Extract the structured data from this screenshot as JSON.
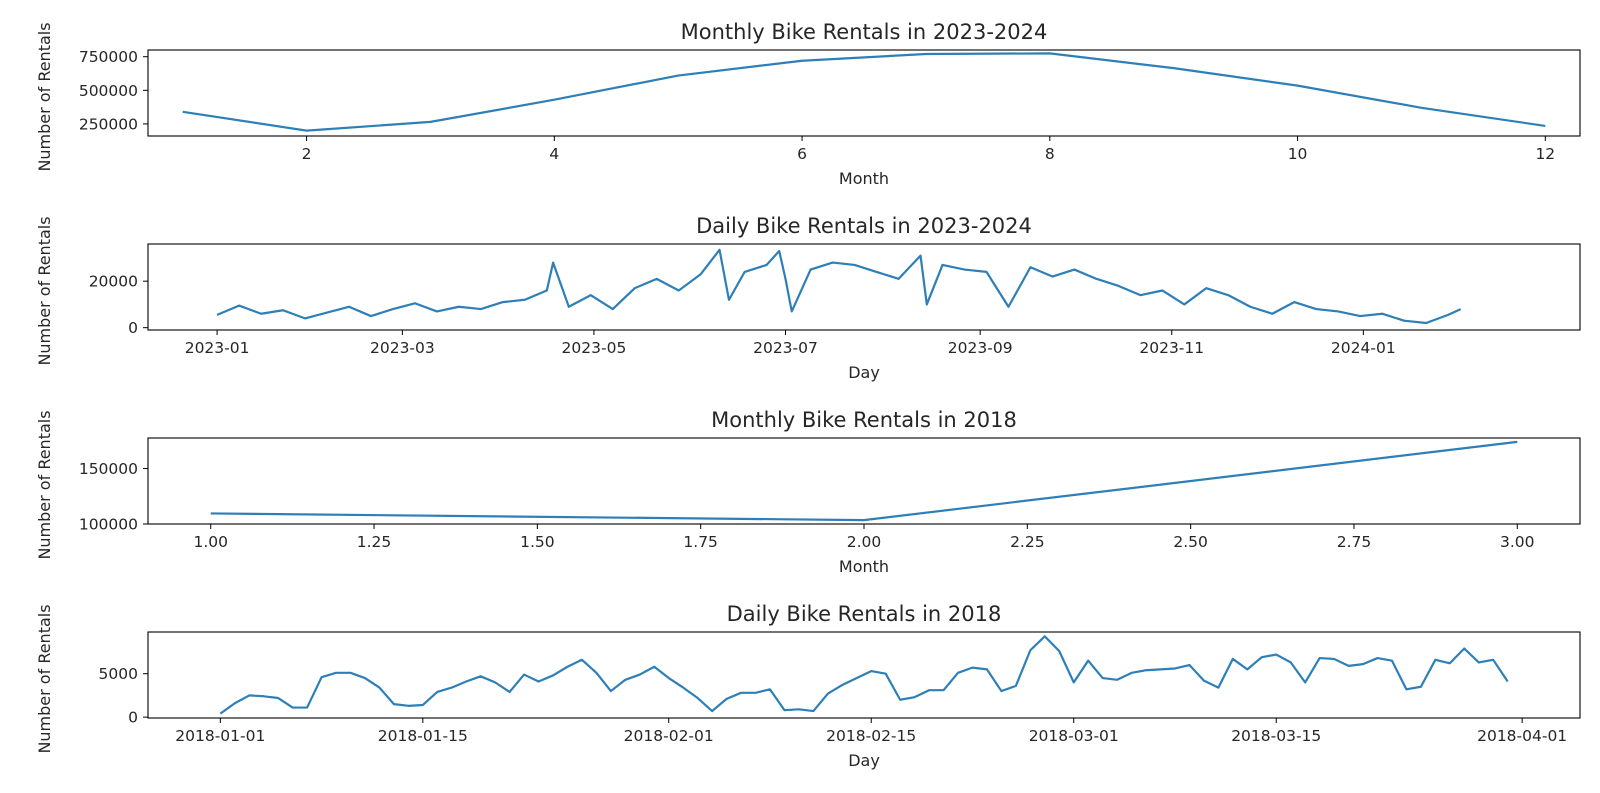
{
  "chart_data": [
    {
      "type": "line",
      "title": "Monthly Bike Rentals in 2023-2024",
      "xlabel": "Month",
      "ylabel": "Number of Rentals",
      "xlim": [
        0.72,
        12.28
      ],
      "ylim": [
        160000,
        800000
      ],
      "xticks": [
        2,
        4,
        6,
        8,
        10,
        12
      ],
      "xtick_labels": [
        "2",
        "4",
        "6",
        "8",
        "10",
        "12"
      ],
      "yticks": [
        250000,
        500000,
        750000
      ],
      "ytick_labels": [
        "250000",
        "500000",
        "750000"
      ],
      "grid": false,
      "color": "#2e7fb8",
      "x": [
        1,
        2,
        3,
        4,
        5,
        6,
        7,
        8,
        9,
        10,
        11,
        12
      ],
      "y": [
        340000,
        200000,
        265000,
        430000,
        610000,
        720000,
        770000,
        775000,
        665000,
        535000,
        370000,
        235000
      ]
    },
    {
      "type": "line",
      "title": "Daily Bike Rentals in 2023-2024",
      "xlabel": "Day",
      "ylabel": "Number of Rentals",
      "x_is_date": true,
      "xlim": [
        "2022-12-10",
        "2024-03-10"
      ],
      "ylim": [
        -1000,
        36000
      ],
      "xticks": [
        "2023-01-01",
        "2023-03-01",
        "2023-05-01",
        "2023-07-01",
        "2023-09-01",
        "2023-11-01",
        "2024-01-01"
      ],
      "xtick_labels": [
        "2023-01",
        "2023-03",
        "2023-05",
        "2023-07",
        "2023-09",
        "2023-11",
        "2024-01"
      ],
      "yticks": [
        0,
        20000
      ],
      "ytick_labels": [
        "0",
        "20000"
      ],
      "grid": false,
      "color": "#2e7fb8",
      "x": [
        "2023-01-01",
        "2023-01-08",
        "2023-01-15",
        "2023-01-22",
        "2023-01-29",
        "2023-02-05",
        "2023-02-12",
        "2023-02-19",
        "2023-02-26",
        "2023-03-05",
        "2023-03-12",
        "2023-03-19",
        "2023-03-26",
        "2023-04-02",
        "2023-04-09",
        "2023-04-16",
        "2023-04-18",
        "2023-04-23",
        "2023-04-30",
        "2023-05-07",
        "2023-05-14",
        "2023-05-21",
        "2023-05-28",
        "2023-06-04",
        "2023-06-10",
        "2023-06-13",
        "2023-06-18",
        "2023-06-25",
        "2023-06-29",
        "2023-07-01",
        "2023-07-03",
        "2023-07-09",
        "2023-07-16",
        "2023-07-23",
        "2023-07-30",
        "2023-08-06",
        "2023-08-13",
        "2023-08-15",
        "2023-08-20",
        "2023-08-27",
        "2023-09-03",
        "2023-09-10",
        "2023-09-17",
        "2023-09-24",
        "2023-10-01",
        "2023-10-08",
        "2023-10-15",
        "2023-10-22",
        "2023-10-29",
        "2023-11-05",
        "2023-11-12",
        "2023-11-19",
        "2023-11-26",
        "2023-12-03",
        "2023-12-10",
        "2023-12-17",
        "2023-12-24",
        "2023-12-31",
        "2024-01-07",
        "2024-01-14",
        "2024-01-21",
        "2024-01-28",
        "2024-02-01"
      ],
      "y": [
        5500,
        9500,
        6000,
        7500,
        4000,
        6500,
        9000,
        5000,
        8000,
        10500,
        7000,
        9000,
        8000,
        11000,
        12000,
        16000,
        28000,
        9000,
        14000,
        8000,
        17000,
        21000,
        16000,
        23000,
        33500,
        12000,
        24000,
        27000,
        33000,
        21000,
        7000,
        25000,
        28000,
        27000,
        24000,
        21000,
        31000,
        10000,
        27000,
        25000,
        24000,
        9000,
        26000,
        22000,
        25000,
        21000,
        18000,
        14000,
        16000,
        10000,
        17000,
        14000,
        9000,
        6000,
        11000,
        8000,
        7000,
        5000,
        6000,
        3000,
        2000,
        5500,
        8000
      ]
    },
    {
      "type": "line",
      "title": "Monthly Bike Rentals in 2018",
      "xlabel": "Month",
      "ylabel": "Number of Rentals",
      "xlim": [
        0.904,
        3.096
      ],
      "ylim": [
        100000,
        177500
      ],
      "xticks": [
        1.0,
        1.25,
        1.5,
        1.75,
        2.0,
        2.25,
        2.5,
        2.75,
        3.0
      ],
      "xtick_labels": [
        "1.00",
        "1.25",
        "1.50",
        "1.75",
        "2.00",
        "2.25",
        "2.50",
        "2.75",
        "3.00"
      ],
      "yticks": [
        100000,
        150000
      ],
      "ytick_labels": [
        "100000",
        "150000"
      ],
      "grid": false,
      "color": "#2e7fb8",
      "x": [
        1,
        2,
        3
      ],
      "y": [
        109500,
        103500,
        174000
      ]
    },
    {
      "type": "line",
      "title": "Daily Bike Rentals in 2018",
      "xlabel": "Day",
      "ylabel": "Number of Rentals",
      "x_is_date": true,
      "xlim": [
        "2017-12-27",
        "2018-04-05"
      ],
      "ylim": [
        -100,
        9800
      ],
      "xticks": [
        "2018-01-01",
        "2018-01-15",
        "2018-02-01",
        "2018-02-15",
        "2018-03-01",
        "2018-03-15",
        "2018-04-01"
      ],
      "xtick_labels": [
        "2018-01-01",
        "2018-01-15",
        "2018-02-01",
        "2018-02-15",
        "2018-03-01",
        "2018-03-15",
        "2018-04-01"
      ],
      "yticks": [
        0,
        5000
      ],
      "ytick_labels": [
        "0",
        "5000"
      ],
      "grid": false,
      "color": "#2e7fb8",
      "x": [
        "2018-01-01",
        "2018-01-02",
        "2018-01-03",
        "2018-01-04",
        "2018-01-05",
        "2018-01-06",
        "2018-01-07",
        "2018-01-08",
        "2018-01-09",
        "2018-01-10",
        "2018-01-11",
        "2018-01-12",
        "2018-01-13",
        "2018-01-14",
        "2018-01-15",
        "2018-01-16",
        "2018-01-17",
        "2018-01-18",
        "2018-01-19",
        "2018-01-20",
        "2018-01-21",
        "2018-01-22",
        "2018-01-23",
        "2018-01-24",
        "2018-01-25",
        "2018-01-26",
        "2018-01-27",
        "2018-01-28",
        "2018-01-29",
        "2018-01-30",
        "2018-01-31",
        "2018-02-01",
        "2018-02-02",
        "2018-02-03",
        "2018-02-04",
        "2018-02-05",
        "2018-02-06",
        "2018-02-07",
        "2018-02-08",
        "2018-02-09",
        "2018-02-10",
        "2018-02-11",
        "2018-02-12",
        "2018-02-13",
        "2018-02-14",
        "2018-02-15",
        "2018-02-16",
        "2018-02-17",
        "2018-02-18",
        "2018-02-19",
        "2018-02-20",
        "2018-02-21",
        "2018-02-22",
        "2018-02-23",
        "2018-02-24",
        "2018-02-25",
        "2018-02-26",
        "2018-02-27",
        "2018-02-28",
        "2018-03-01",
        "2018-03-02",
        "2018-03-03",
        "2018-03-04",
        "2018-03-05",
        "2018-03-06",
        "2018-03-07",
        "2018-03-08",
        "2018-03-09",
        "2018-03-10",
        "2018-03-11",
        "2018-03-12",
        "2018-03-13",
        "2018-03-14",
        "2018-03-15",
        "2018-03-16",
        "2018-03-17",
        "2018-03-18",
        "2018-03-19",
        "2018-03-20",
        "2018-03-21",
        "2018-03-22",
        "2018-03-23",
        "2018-03-24",
        "2018-03-25",
        "2018-03-26",
        "2018-03-27",
        "2018-03-28",
        "2018-03-29",
        "2018-03-30",
        "2018-03-31"
      ],
      "y": [
        400,
        1600,
        2500,
        2400,
        2200,
        1100,
        1100,
        4600,
        5100,
        5100,
        4500,
        3400,
        1500,
        1300,
        1400,
        2900,
        3400,
        4100,
        4700,
        4000,
        2900,
        4900,
        4100,
        4800,
        5800,
        6600,
        5100,
        3000,
        4300,
        4900,
        5800,
        4500,
        3400,
        2200,
        700,
        2100,
        2800,
        2800,
        3200,
        800,
        900,
        700,
        2700,
        3700,
        4500,
        5300,
        5000,
        2000,
        2300,
        3100,
        3100,
        5100,
        5700,
        5500,
        3000,
        3600,
        7700,
        9300,
        7600,
        4000,
        6500,
        4500,
        4300,
        5100,
        5400,
        5500,
        5600,
        6000,
        4200,
        3400,
        6700,
        5500,
        6900,
        7200,
        6300,
        4000,
        6800,
        6700,
        5900,
        6100,
        6800,
        6500,
        3200,
        3500,
        6600,
        6200,
        7900,
        6300,
        6600,
        4100
      ]
    }
  ]
}
